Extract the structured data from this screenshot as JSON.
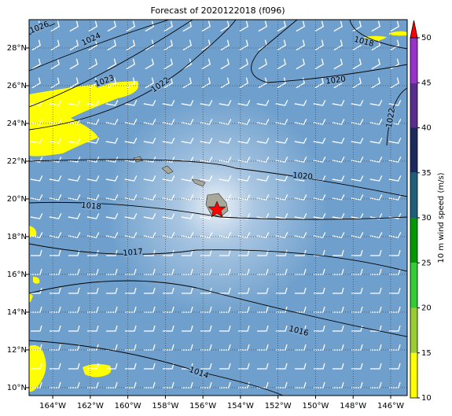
{
  "map": {
    "title": "Forecast of 2020122018 (f096)",
    "xlim": [
      -165.26,
      -145.12
    ],
    "ylim": [
      9.58,
      29.5
    ],
    "xticks": [
      {
        "value": -164,
        "label": "164°W"
      },
      {
        "value": -162,
        "label": "162°W"
      },
      {
        "value": -160,
        "label": "160°W"
      },
      {
        "value": -158,
        "label": "158°W"
      },
      {
        "value": -156,
        "label": "156°W"
      },
      {
        "value": -154,
        "label": "154°W"
      },
      {
        "value": -152,
        "label": "152°W"
      },
      {
        "value": -150,
        "label": "150°W"
      },
      {
        "value": -148,
        "label": "148°W"
      },
      {
        "value": -146,
        "label": "146°W"
      }
    ],
    "yticks": [
      {
        "value": 10,
        "label": "10°N"
      },
      {
        "value": 12,
        "label": "12°N"
      },
      {
        "value": 14,
        "label": "14°N"
      },
      {
        "value": 16,
        "label": "16°N"
      },
      {
        "value": 18,
        "label": "18°N"
      },
      {
        "value": 20,
        "label": "20°N"
      },
      {
        "value": 22,
        "label": "22°N"
      },
      {
        "value": 24,
        "label": "24°N"
      },
      {
        "value": 26,
        "label": "26°N"
      },
      {
        "value": 28,
        "label": "28°N"
      }
    ],
    "contour_labels": [
      1026,
      1024,
      1023,
      1022,
      1018,
      1020,
      1022,
      1020,
      1018,
      1017,
      1016,
      1014
    ],
    "colorbar": {
      "label": "10 m wind speed (m/s)",
      "lim": [
        10,
        50
      ],
      "ticks": [
        10,
        15,
        20,
        25,
        30,
        35,
        40,
        45,
        50
      ],
      "colors": [
        "#ffff00",
        "#9acd32",
        "#32cd32",
        "#009900",
        "#1f5f7a",
        "#1b2a5c",
        "#5b2c8f",
        "#9932cc"
      ],
      "extend_color": "#ff0000"
    }
  }
}
